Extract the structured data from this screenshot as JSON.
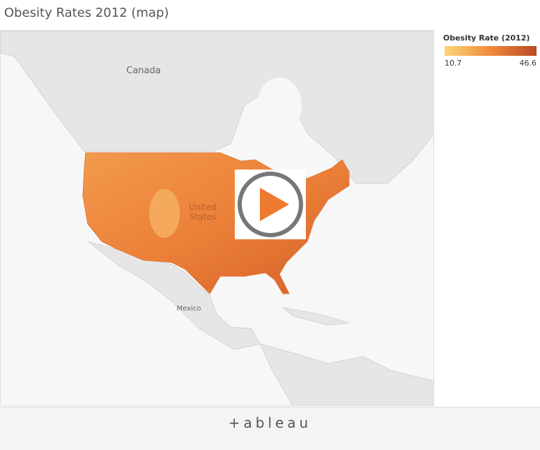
{
  "header": {
    "title": "Obesity Rates 2012 (map)"
  },
  "map": {
    "labels": {
      "canada": "Canada",
      "us_line1": "United",
      "us_line2": "States",
      "mexico": "Mexico"
    }
  },
  "legend": {
    "title": "Obesity Rate (2012)",
    "min": 10.7,
    "max": 46.6,
    "colors": [
      "#fbd67a",
      "#f08a3c",
      "#b84a24"
    ]
  },
  "footer": {
    "logo": "+ableau"
  }
}
